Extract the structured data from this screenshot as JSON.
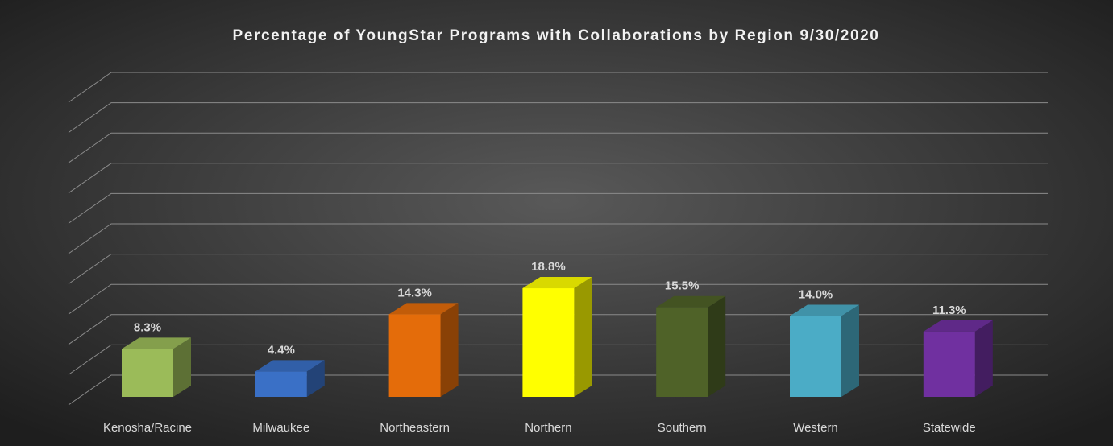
{
  "chart_data": {
    "type": "bar3d",
    "title": "Percentage of YoungStar Programs with Collaborations by Region 9/30/2020",
    "categories": [
      "Kenosha/Racine",
      "Milwaukee",
      "Northeastern",
      "Northern",
      "Southern",
      "Western",
      "Statewide"
    ],
    "values": [
      8.3,
      4.4,
      14.3,
      18.8,
      15.5,
      14.0,
      11.3
    ],
    "value_labels": [
      "8.3%",
      "4.4%",
      "14.3%",
      "18.8%",
      "15.5%",
      "14.0%",
      "11.3%"
    ],
    "colors": [
      "#9bbb59",
      "#3a70c6",
      "#e46c0a",
      "#ffff00",
      "#4f6228",
      "#4bacc6",
      "#7030a0"
    ],
    "ylim": [
      0,
      50
    ],
    "yticks": [
      0,
      5,
      10,
      15,
      20,
      25,
      30,
      35,
      40,
      45,
      50
    ],
    "grid": true
  }
}
